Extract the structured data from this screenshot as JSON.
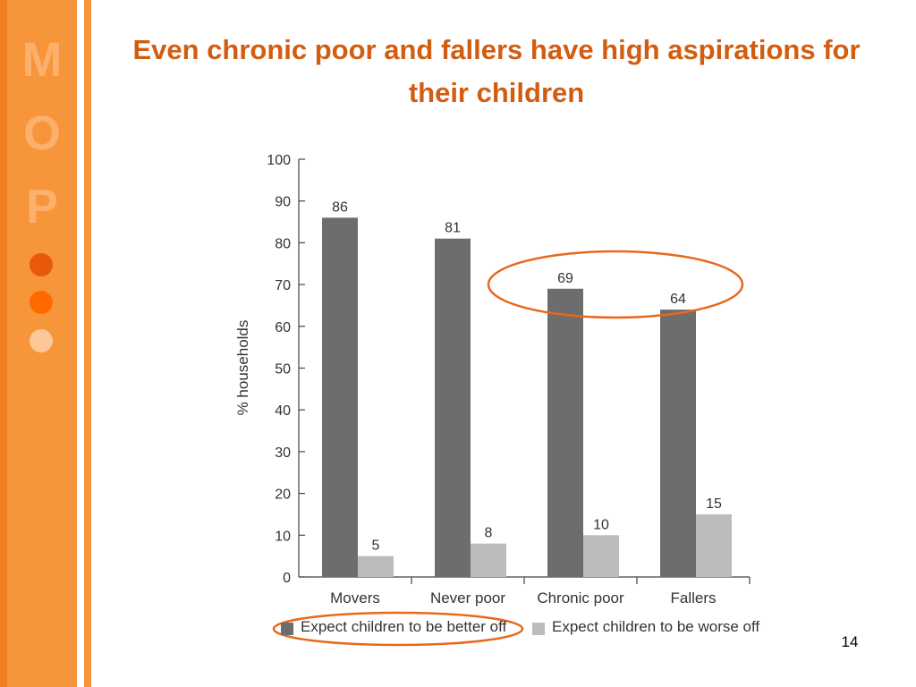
{
  "slide": {
    "title": "Even chronic poor and fallers have high aspirations for their children",
    "number": "14"
  },
  "logo": {
    "letters": [
      "M",
      "O",
      "P"
    ],
    "dot_colors": [
      "#e8590c",
      "#ff6a00",
      "#fcc89a"
    ]
  },
  "colors": {
    "accent": "#f7953a",
    "title": "#d25d10",
    "highlight": "#e8681a"
  },
  "chart_data": {
    "type": "bar",
    "title": "",
    "xlabel": "",
    "ylabel": "% households",
    "ylim": [
      0,
      100
    ],
    "yticks": [
      0,
      10,
      20,
      30,
      40,
      50,
      60,
      70,
      80,
      90,
      100
    ],
    "categories": [
      "Movers",
      "Never poor",
      "Chronic poor",
      "Fallers"
    ],
    "series": [
      {
        "name": "Expect children to be better off",
        "values": [
          86,
          81,
          69,
          64
        ],
        "color": "#6d6d6d"
      },
      {
        "name": "Expect children to be worse off",
        "values": [
          5,
          8,
          10,
          15
        ],
        "color": "#bbbcbe"
      }
    ],
    "data_labels": true,
    "legend_position": "bottom",
    "grid": false,
    "annotations": [
      {
        "type": "ellipse",
        "encloses": "Chronic poor and Fallers better-off bars",
        "color": "#e8681a"
      },
      {
        "type": "ellipse",
        "encloses": "legend entry: Expect children to be better off",
        "color": "#e8681a"
      }
    ]
  }
}
